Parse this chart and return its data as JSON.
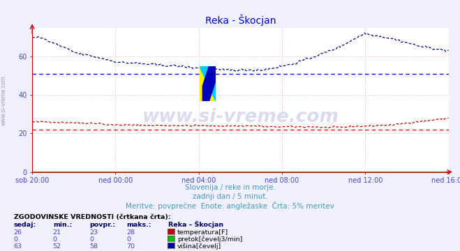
{
  "title": "Reka - Škocjan",
  "title_color": "#0000cc",
  "bg_color": "#f0f0ff",
  "plot_bg_color": "#ffffff",
  "grid_color": "#ffbbbb",
  "xlabel_ticks": [
    "sob 20:00",
    "ned 00:00",
    "ned 04:00",
    "ned 08:00",
    "ned 12:00",
    "ned 16:00"
  ],
  "ylim": [
    0,
    75
  ],
  "xlim": [
    0,
    288
  ],
  "tick_label_color": "#4444cc",
  "tick_positions": [
    0,
    57.6,
    115.2,
    172.8,
    230.4,
    288
  ],
  "ylabel_ticks": [
    0,
    20,
    40,
    60
  ],
  "ref_line_red_y": 22,
  "ref_line_blue_y": 51,
  "ref_line_red_color": "#ff0000",
  "ref_line_blue_color": "#0000ff",
  "temp_color": "#cc0000",
  "flow_color": "#00aa00",
  "height_color": "#000099",
  "watermark_text": "www.si-vreme.com",
  "watermark_color": "#ccccdd",
  "subtitle1": "Slovenija / reke in morje.",
  "subtitle2": "zadnji dan / 5 minut.",
  "subtitle3": "Meritve: povprečne  Enote: angležaske  Črta: 5% meritev",
  "subtitle_color": "#4499bb",
  "legend_title": "ZGODOVINSKE VREDNOSTI (črtkana črta):",
  "legend_headers": [
    "sedaj:",
    "min.:",
    "povpr.:",
    "maks.:",
    "Reka – Škocjan"
  ],
  "legend_rows": [
    [
      26,
      21,
      23,
      28,
      "temperatura[F]"
    ],
    [
      0,
      0,
      0,
      0,
      "pretok[čevelj3/min]"
    ],
    [
      63,
      52,
      58,
      70,
      "višina[čevelj]"
    ]
  ],
  "legend_colors": [
    "#cc0000",
    "#00bb00",
    "#0000aa"
  ]
}
